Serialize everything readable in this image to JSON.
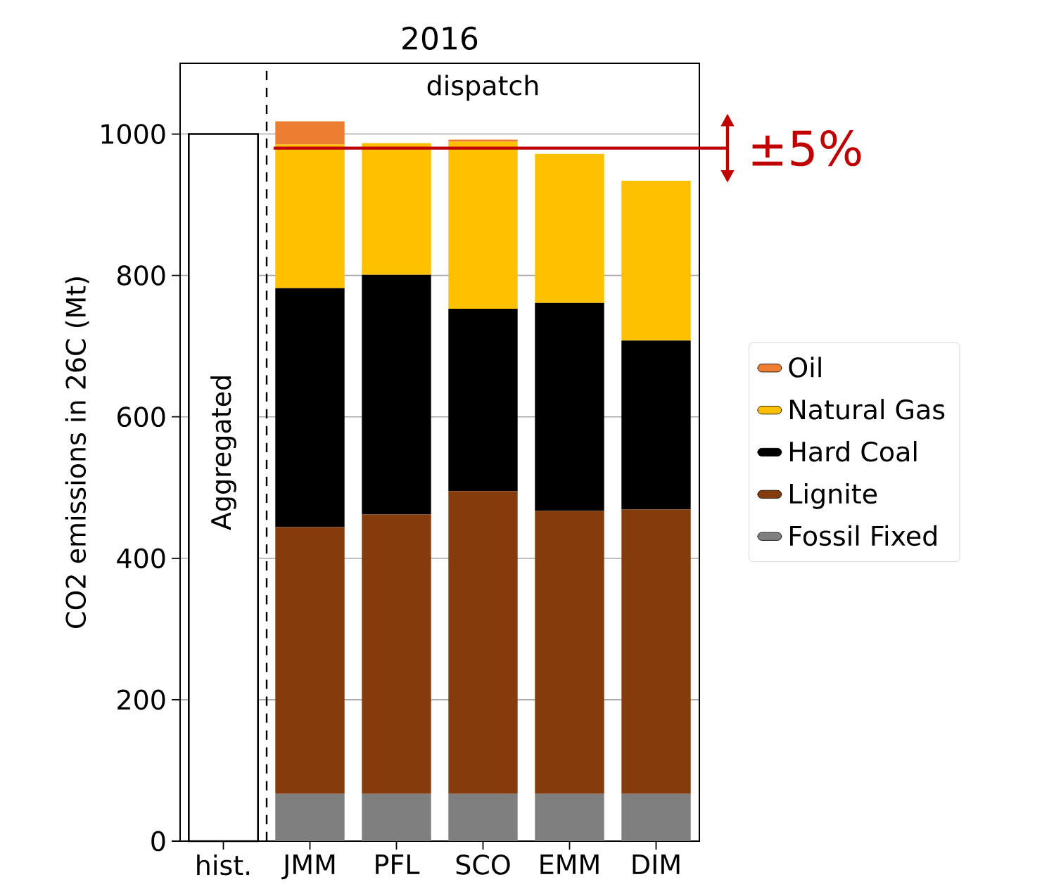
{
  "chart_data": {
    "type": "bar",
    "title": "2016",
    "ylabel": "CO2 emissions in 26C (Mt)",
    "categories": [
      "hist.",
      "JMM",
      "PFL",
      "SCO",
      "EMM",
      "DIM"
    ],
    "stacked": true,
    "series": [
      {
        "color": "#ffffff",
        "values": [
          1000,
          null,
          null,
          null,
          null,
          null
        ]
      },
      {
        "name": "Fossil Fixed",
        "color": "#7f7f7f",
        "values": [
          null,
          67,
          67,
          67,
          67,
          67
        ]
      },
      {
        "name": "Lignite",
        "color": "#843c0c",
        "values": [
          null,
          377,
          395,
          428,
          400,
          402
        ]
      },
      {
        "name": "Hard Coal",
        "color": "#000000",
        "values": [
          null,
          338,
          339,
          258,
          294,
          239
        ]
      },
      {
        "name": "Natural Gas",
        "color": "#ffc000",
        "values": [
          null,
          203,
          186,
          236,
          211,
          226
        ]
      },
      {
        "name": "Oil",
        "color": "#ed7d31",
        "values": [
          null,
          33,
          0,
          3,
          0,
          0
        ]
      }
    ],
    "ylim": [
      0,
      1100
    ],
    "yticks": [
      0,
      200,
      400,
      600,
      800,
      1000
    ],
    "grid": "y",
    "legend": "right",
    "ref_lines": [
      {
        "axis": "y",
        "value": 980,
        "color": "#c00000"
      }
    ],
    "annotations": [
      "Aggregated",
      "dispatch",
      "±5%"
    ]
  }
}
